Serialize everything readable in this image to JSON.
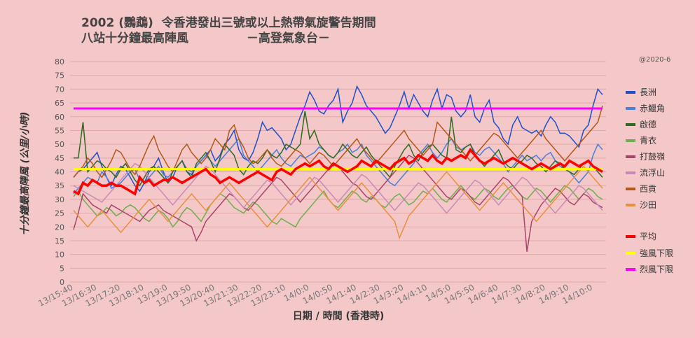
{
  "chart_title": {
    "line1": "2002 (鸚鵡)  令香港發出三號或以上熱帶氣旋警告期間",
    "line2": "八站十分鐘最高陣風              －高登氣象台－"
  },
  "copyright": "@2020-6",
  "chart_data": {
    "type": "line",
    "title": "2002 (鸚鵡)  令香港發出三號或以上熱帶氣旋警告期間 八站十分鐘最高陣風 －高登氣象台－",
    "xlabel": "日期 / 時間 (香港時)",
    "ylabel": "十分鐘最高陣風 (公里/小時)",
    "ylim": [
      0,
      80
    ],
    "ytick_step": 5,
    "grid": true,
    "legend_position": "right",
    "x_tick_labels": [
      "13/15:40",
      "13/16:30",
      "13/17:20",
      "13/18:10",
      "13/19:0",
      "13/19:50",
      "13/20:40",
      "13/21:30",
      "13/22:20",
      "13/23:10",
      "14/0:0",
      "14/0:50",
      "14/1:40",
      "14/2:30",
      "14/3:20",
      "14/4:10",
      "14/5:0",
      "14/5:50",
      "14/6:40",
      "14/7:30",
      "14/8:20",
      "14/9:10",
      "14/10:0"
    ],
    "points_per_tick": 5,
    "num_points": 113,
    "thresholds": [
      {
        "name": "強風下限",
        "value": 41,
        "color": "#ffff00"
      },
      {
        "name": "烈風下限",
        "value": 63,
        "color": "#ff00ff"
      }
    ],
    "series": [
      {
        "name": "長洲",
        "color": "#1f4fcc",
        "values": [
          38,
          40,
          41,
          43,
          45,
          47,
          42,
          38,
          35,
          39,
          42,
          41,
          38,
          35,
          33,
          36,
          40,
          42,
          45,
          40,
          36,
          38,
          42,
          44,
          40,
          39,
          42,
          44,
          46,
          48,
          44,
          46,
          50,
          52,
          55,
          48,
          45,
          44,
          47,
          52,
          58,
          55,
          56,
          54,
          52,
          48,
          50,
          55,
          60,
          64,
          69,
          66,
          62,
          61,
          64,
          66,
          70,
          58,
          62,
          65,
          71,
          68,
          64,
          62,
          60,
          57,
          54,
          56,
          60,
          64,
          69,
          63,
          68,
          65,
          62,
          60,
          66,
          70,
          63,
          68,
          67,
          62,
          60,
          62,
          68,
          60,
          58,
          63,
          66,
          58,
          56,
          52,
          50,
          57,
          60,
          56,
          55,
          54,
          55,
          53,
          57,
          60,
          58,
          54,
          54,
          53,
          51,
          49,
          55,
          57,
          64,
          70,
          68
        ]
      },
      {
        "name": "赤鱲角",
        "color": "#4a7fd8",
        "values": [
          32,
          34,
          36,
          38,
          37,
          36,
          40,
          38,
          34,
          35,
          36,
          38,
          40,
          41,
          37,
          36,
          38,
          40,
          42,
          39,
          38,
          40,
          42,
          44,
          41,
          40,
          42,
          44,
          46,
          44,
          42,
          44,
          46,
          48,
          50,
          52,
          46,
          44,
          42,
          40,
          42,
          44,
          46,
          48,
          45,
          43,
          42,
          44,
          46,
          45,
          46,
          47,
          49,
          48,
          46,
          45,
          47,
          48,
          50,
          47,
          48,
          50,
          46,
          44,
          42,
          40,
          38,
          36,
          35,
          37,
          39,
          41,
          43,
          46,
          48,
          50,
          47,
          45,
          47,
          50,
          52,
          49,
          48,
          49,
          50,
          47,
          46,
          48,
          49,
          47,
          45,
          43,
          40,
          42,
          44,
          46,
          44,
          45,
          46,
          44,
          46,
          47,
          44,
          42,
          41,
          40,
          38,
          36,
          38,
          40,
          46,
          50,
          48
        ]
      },
      {
        "name": "啟德",
        "color": "#2d6a22",
        "values": [
          45,
          45,
          58,
          40,
          42,
          44,
          43,
          41,
          40,
          38,
          41,
          43,
          40,
          37,
          35,
          38,
          41,
          42,
          40,
          38,
          36,
          40,
          42,
          44,
          40,
          38,
          43,
          45,
          47,
          44,
          40,
          45,
          50,
          48,
          46,
          41,
          39,
          42,
          44,
          43,
          45,
          48,
          46,
          45,
          47,
          50,
          49,
          48,
          50,
          62,
          52,
          55,
          50,
          48,
          46,
          45,
          47,
          50,
          48,
          46,
          45,
          47,
          49,
          46,
          44,
          42,
          40,
          38,
          42,
          45,
          48,
          50,
          46,
          44,
          47,
          49,
          50,
          48,
          46,
          45,
          60,
          48,
          47,
          49,
          50,
          46,
          44,
          42,
          44,
          46,
          48,
          44,
          42,
          41,
          43,
          44,
          46,
          45,
          43,
          42,
          40,
          42,
          44,
          43,
          41,
          40,
          39,
          41,
          43,
          44,
          42,
          40,
          38
        ]
      },
      {
        "name": "青衣",
        "color": "#6fae4e",
        "values": [
          31,
          33,
          30,
          28,
          26,
          24,
          25,
          27,
          26,
          24,
          25,
          27,
          28,
          27,
          25,
          23,
          22,
          24,
          26,
          25,
          23,
          20,
          22,
          25,
          27,
          26,
          24,
          22,
          25,
          28,
          30,
          32,
          31,
          29,
          27,
          26,
          25,
          27,
          29,
          28,
          26,
          24,
          22,
          21,
          23,
          22,
          21,
          20,
          23,
          25,
          27,
          29,
          31,
          33,
          30,
          28,
          27,
          29,
          31,
          33,
          32,
          30,
          29,
          31,
          30,
          28,
          27,
          29,
          31,
          32,
          30,
          28,
          29,
          31,
          33,
          32,
          34,
          32,
          30,
          29,
          31,
          33,
          35,
          33,
          31,
          30,
          32,
          34,
          33,
          31,
          30,
          32,
          34,
          35,
          33,
          31,
          30,
          32,
          34,
          33,
          31,
          29,
          31,
          33,
          35,
          34,
          32,
          30,
          32,
          34,
          33,
          31,
          30
        ]
      },
      {
        "name": "打鼓嶺",
        "color": "#a8456c",
        "values": [
          19,
          25,
          32,
          30,
          28,
          27,
          26,
          25,
          28,
          27,
          26,
          25,
          24,
          23,
          22,
          24,
          26,
          27,
          28,
          26,
          25,
          24,
          23,
          22,
          21,
          20,
          15,
          18,
          22,
          24,
          26,
          28,
          30,
          32,
          31,
          29,
          27,
          26,
          28,
          30,
          32,
          34,
          36,
          38,
          37,
          35,
          33,
          31,
          29,
          31,
          33,
          35,
          37,
          39,
          41,
          43,
          42,
          40,
          38,
          36,
          35,
          33,
          31,
          30,
          32,
          34,
          36,
          38,
          40,
          42,
          44,
          46,
          45,
          43,
          41,
          39,
          37,
          35,
          33,
          31,
          30,
          32,
          34,
          33,
          31,
          29,
          28,
          30,
          32,
          34,
          36,
          38,
          37,
          35,
          33,
          31,
          11,
          22,
          25,
          28,
          30,
          32,
          34,
          33,
          31,
          29,
          28,
          30,
          32,
          31,
          29,
          28,
          27
        ]
      },
      {
        "name": "流浮山",
        "color": "#c98ab8",
        "values": [
          35,
          34,
          33,
          32,
          31,
          30,
          29,
          31,
          33,
          35,
          37,
          39,
          41,
          43,
          42,
          40,
          38,
          36,
          34,
          32,
          30,
          28,
          30,
          32,
          34,
          36,
          38,
          40,
          42,
          41,
          39,
          37,
          35,
          33,
          31,
          29,
          27,
          29,
          31,
          33,
          35,
          37,
          36,
          34,
          32,
          30,
          28,
          30,
          32,
          34,
          36,
          38,
          37,
          35,
          33,
          31,
          29,
          31,
          33,
          35,
          37,
          39,
          38,
          36,
          34,
          32,
          30,
          28,
          26,
          28,
          30,
          32,
          34,
          36,
          35,
          33,
          31,
          29,
          27,
          25,
          27,
          29,
          31,
          33,
          35,
          37,
          36,
          34,
          32,
          30,
          28,
          30,
          32,
          34,
          36,
          38,
          37,
          35,
          33,
          31,
          29,
          27,
          25,
          27,
          29,
          31,
          33,
          35,
          34,
          32,
          30,
          28,
          26
        ]
      },
      {
        "name": "西貢",
        "color": "#b3581a",
        "values": [
          38,
          40,
          42,
          45,
          43,
          40,
          38,
          41,
          44,
          48,
          47,
          44,
          41,
          39,
          42,
          46,
          50,
          53,
          48,
          45,
          42,
          40,
          44,
          48,
          50,
          47,
          45,
          43,
          45,
          48,
          52,
          50,
          48,
          55,
          57,
          52,
          49,
          45,
          43,
          44,
          46,
          48,
          45,
          43,
          42,
          44,
          46,
          48,
          47,
          45,
          43,
          45,
          47,
          46,
          44,
          42,
          44,
          46,
          48,
          50,
          52,
          49,
          47,
          45,
          43,
          45,
          47,
          49,
          51,
          53,
          55,
          52,
          50,
          48,
          46,
          48,
          50,
          58,
          56,
          54,
          52,
          50,
          48,
          46,
          44,
          46,
          48,
          50,
          52,
          54,
          53,
          51,
          49,
          47,
          45,
          47,
          49,
          51,
          53,
          55,
          52,
          50,
          48,
          46,
          44,
          46,
          48,
          50,
          52,
          54,
          56,
          58,
          64
        ]
      },
      {
        "name": "沙田",
        "color": "#e8903e",
        "values": [
          26,
          24,
          22,
          20,
          22,
          24,
          26,
          24,
          22,
          20,
          18,
          20,
          22,
          24,
          26,
          28,
          30,
          28,
          26,
          24,
          22,
          24,
          26,
          28,
          30,
          32,
          30,
          28,
          26,
          28,
          30,
          32,
          34,
          36,
          34,
          32,
          30,
          28,
          26,
          24,
          22,
          20,
          22,
          24,
          26,
          28,
          30,
          32,
          34,
          36,
          38,
          36,
          34,
          32,
          30,
          28,
          26,
          28,
          30,
          32,
          34,
          36,
          34,
          32,
          30,
          28,
          26,
          24,
          22,
          16,
          20,
          24,
          26,
          28,
          30,
          32,
          34,
          36,
          38,
          40,
          38,
          36,
          34,
          32,
          30,
          28,
          26,
          28,
          30,
          32,
          34,
          36,
          34,
          32,
          30,
          28,
          26,
          24,
          22,
          24,
          26,
          28,
          30,
          32,
          34,
          36,
          38,
          40,
          42,
          40,
          38,
          36,
          34
        ]
      },
      {
        "name": "平均",
        "color": "#ff0000",
        "values": [
          33,
          32,
          36,
          35,
          37,
          36,
          35,
          35,
          36,
          35,
          35,
          34,
          33,
          32,
          38,
          36,
          37,
          35,
          36,
          37,
          37,
          38,
          37,
          36,
          37,
          38,
          39,
          40,
          41,
          39,
          38,
          36,
          37,
          38,
          37,
          36,
          37,
          38,
          39,
          40,
          39,
          38,
          37,
          40,
          41,
          40,
          39,
          41,
          42,
          43,
          42,
          43,
          44,
          42,
          41,
          43,
          42,
          41,
          40,
          41,
          42,
          44,
          43,
          42,
          44,
          43,
          42,
          41,
          43,
          44,
          45,
          43,
          44,
          46,
          45,
          44,
          46,
          44,
          43,
          45,
          44,
          45,
          46,
          45,
          48,
          46,
          44,
          43,
          44,
          45,
          44,
          43,
          44,
          45,
          44,
          43,
          42,
          41,
          42,
          43,
          42,
          41,
          42,
          43,
          42,
          44,
          43,
          42,
          43,
          44,
          42,
          41,
          40
        ]
      }
    ]
  }
}
